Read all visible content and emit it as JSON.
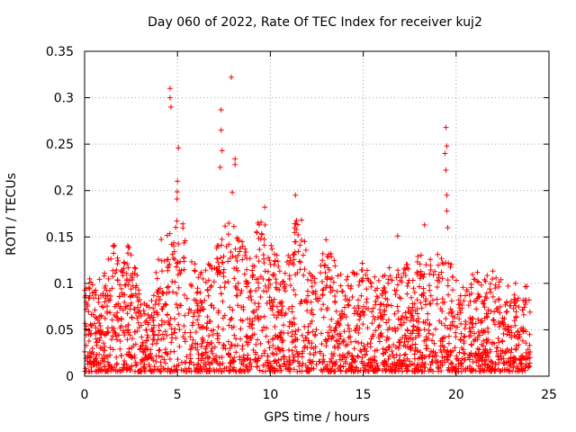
{
  "chart_data": {
    "type": "scatter",
    "title": "Day 060 of 2022, Rate Of TEC Index for receiver kuj2",
    "xlabel": "GPS time / hours",
    "ylabel": "ROTI / TECUs",
    "xlim": [
      0,
      25
    ],
    "ylim": [
      0,
      0.35
    ],
    "xticks": [
      0,
      5,
      10,
      15,
      20,
      25
    ],
    "xtick_labels": [
      "0",
      "5",
      "10",
      "15",
      "20",
      "25"
    ],
    "yticks": [
      0,
      0.05,
      0.1,
      0.15,
      0.2,
      0.25,
      0.3,
      0.35
    ],
    "ytick_labels": [
      "0",
      "0.05",
      "0.1",
      "0.15",
      "0.2",
      "0.25",
      "0.3",
      "0.35"
    ],
    "grid": true,
    "marker": "+",
    "color": "#ff0000",
    "series": [
      {
        "name": "ROTI",
        "envelope": [
          [
            0.0,
            0.09
          ],
          [
            0.5,
            0.11
          ],
          [
            1.0,
            0.1
          ],
          [
            1.5,
            0.15
          ],
          [
            2.0,
            0.11
          ],
          [
            2.5,
            0.15
          ],
          [
            3.0,
            0.08
          ],
          [
            3.5,
            0.07
          ],
          [
            4.0,
            0.14
          ],
          [
            4.5,
            0.16
          ],
          [
            5.0,
            0.2
          ],
          [
            5.5,
            0.13
          ],
          [
            6.0,
            0.12
          ],
          [
            6.5,
            0.11
          ],
          [
            7.0,
            0.13
          ],
          [
            7.5,
            0.16
          ],
          [
            8.0,
            0.17
          ],
          [
            8.5,
            0.14
          ],
          [
            9.0,
            0.12
          ],
          [
            9.5,
            0.18
          ],
          [
            10.0,
            0.14
          ],
          [
            10.5,
            0.12
          ],
          [
            11.0,
            0.13
          ],
          [
            11.5,
            0.19
          ],
          [
            12.0,
            0.12
          ],
          [
            12.5,
            0.11
          ],
          [
            13.0,
            0.14
          ],
          [
            13.5,
            0.12
          ],
          [
            14.0,
            0.1
          ],
          [
            14.5,
            0.11
          ],
          [
            15.0,
            0.12
          ],
          [
            15.5,
            0.1
          ],
          [
            16.0,
            0.11
          ],
          [
            16.5,
            0.12
          ],
          [
            17.0,
            0.11
          ],
          [
            17.5,
            0.12
          ],
          [
            18.0,
            0.13
          ],
          [
            18.5,
            0.12
          ],
          [
            19.0,
            0.13
          ],
          [
            19.5,
            0.14
          ],
          [
            20.0,
            0.1
          ],
          [
            20.5,
            0.09
          ],
          [
            21.0,
            0.11
          ],
          [
            21.5,
            0.1
          ],
          [
            22.0,
            0.11
          ],
          [
            22.5,
            0.1
          ],
          [
            23.0,
            0.1
          ],
          [
            23.5,
            0.09
          ],
          [
            24.0,
            0.1
          ]
        ],
        "peaks": [
          [
            4.6,
            0.31
          ],
          [
            4.6,
            0.3
          ],
          [
            4.65,
            0.29
          ],
          [
            5.05,
            0.246
          ],
          [
            5.0,
            0.21
          ],
          [
            7.35,
            0.287
          ],
          [
            7.35,
            0.265
          ],
          [
            7.4,
            0.243
          ],
          [
            7.3,
            0.225
          ],
          [
            7.9,
            0.322
          ],
          [
            8.1,
            0.234
          ],
          [
            8.1,
            0.228
          ],
          [
            7.95,
            0.198
          ],
          [
            9.7,
            0.182
          ],
          [
            11.35,
            0.195
          ],
          [
            11.4,
            0.158
          ],
          [
            13.0,
            0.147
          ],
          [
            16.85,
            0.151
          ],
          [
            18.3,
            0.163
          ],
          [
            19.45,
            0.268
          ],
          [
            19.5,
            0.248
          ],
          [
            19.4,
            0.24
          ],
          [
            19.45,
            0.222
          ],
          [
            19.5,
            0.195
          ],
          [
            19.5,
            0.178
          ],
          [
            19.55,
            0.16
          ]
        ]
      }
    ]
  }
}
